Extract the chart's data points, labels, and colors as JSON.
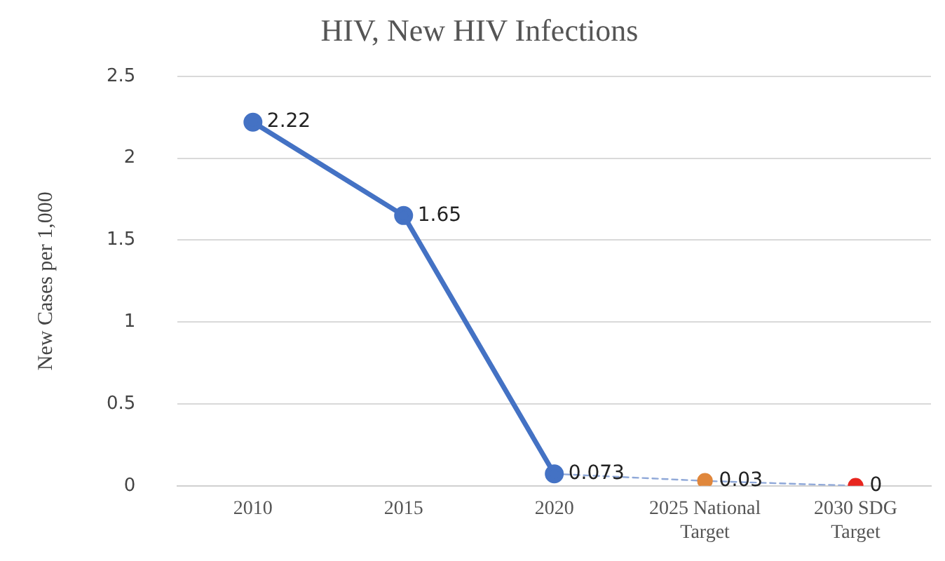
{
  "chart_data": {
    "type": "line",
    "title": "HIV, New HIV Infections",
    "ylabel": "New Cases per 1,000",
    "categories": [
      "2010",
      "2015",
      "2020",
      "2025 National Target",
      "2030 SDG Target"
    ],
    "series": [
      {
        "color": "#4472c4",
        "values": [
          2.22,
          1.65,
          0.073,
          null,
          null
        ],
        "line_style": "solid",
        "colors": [
          "#4472c4",
          "#4472c4",
          "#4472c4",
          null,
          null
        ],
        "value_labels": [
          "2.22",
          "1.65",
          "0.073",
          null,
          null
        ]
      },
      {
        "color": "#8fa8d8",
        "values": [
          null,
          null,
          0.073,
          0.03,
          0
        ],
        "line_style": "dashed",
        "colors": [
          null,
          null,
          null,
          "#e0873c",
          "#e8261f"
        ],
        "value_labels": [
          null,
          null,
          null,
          "0.03",
          "0"
        ]
      }
    ],
    "ylim": [
      0,
      2.5
    ],
    "yticks": [
      0,
      0.5,
      1,
      1.5,
      2,
      2.5
    ],
    "grid": "y",
    "legend": false,
    "marker": "circle"
  }
}
